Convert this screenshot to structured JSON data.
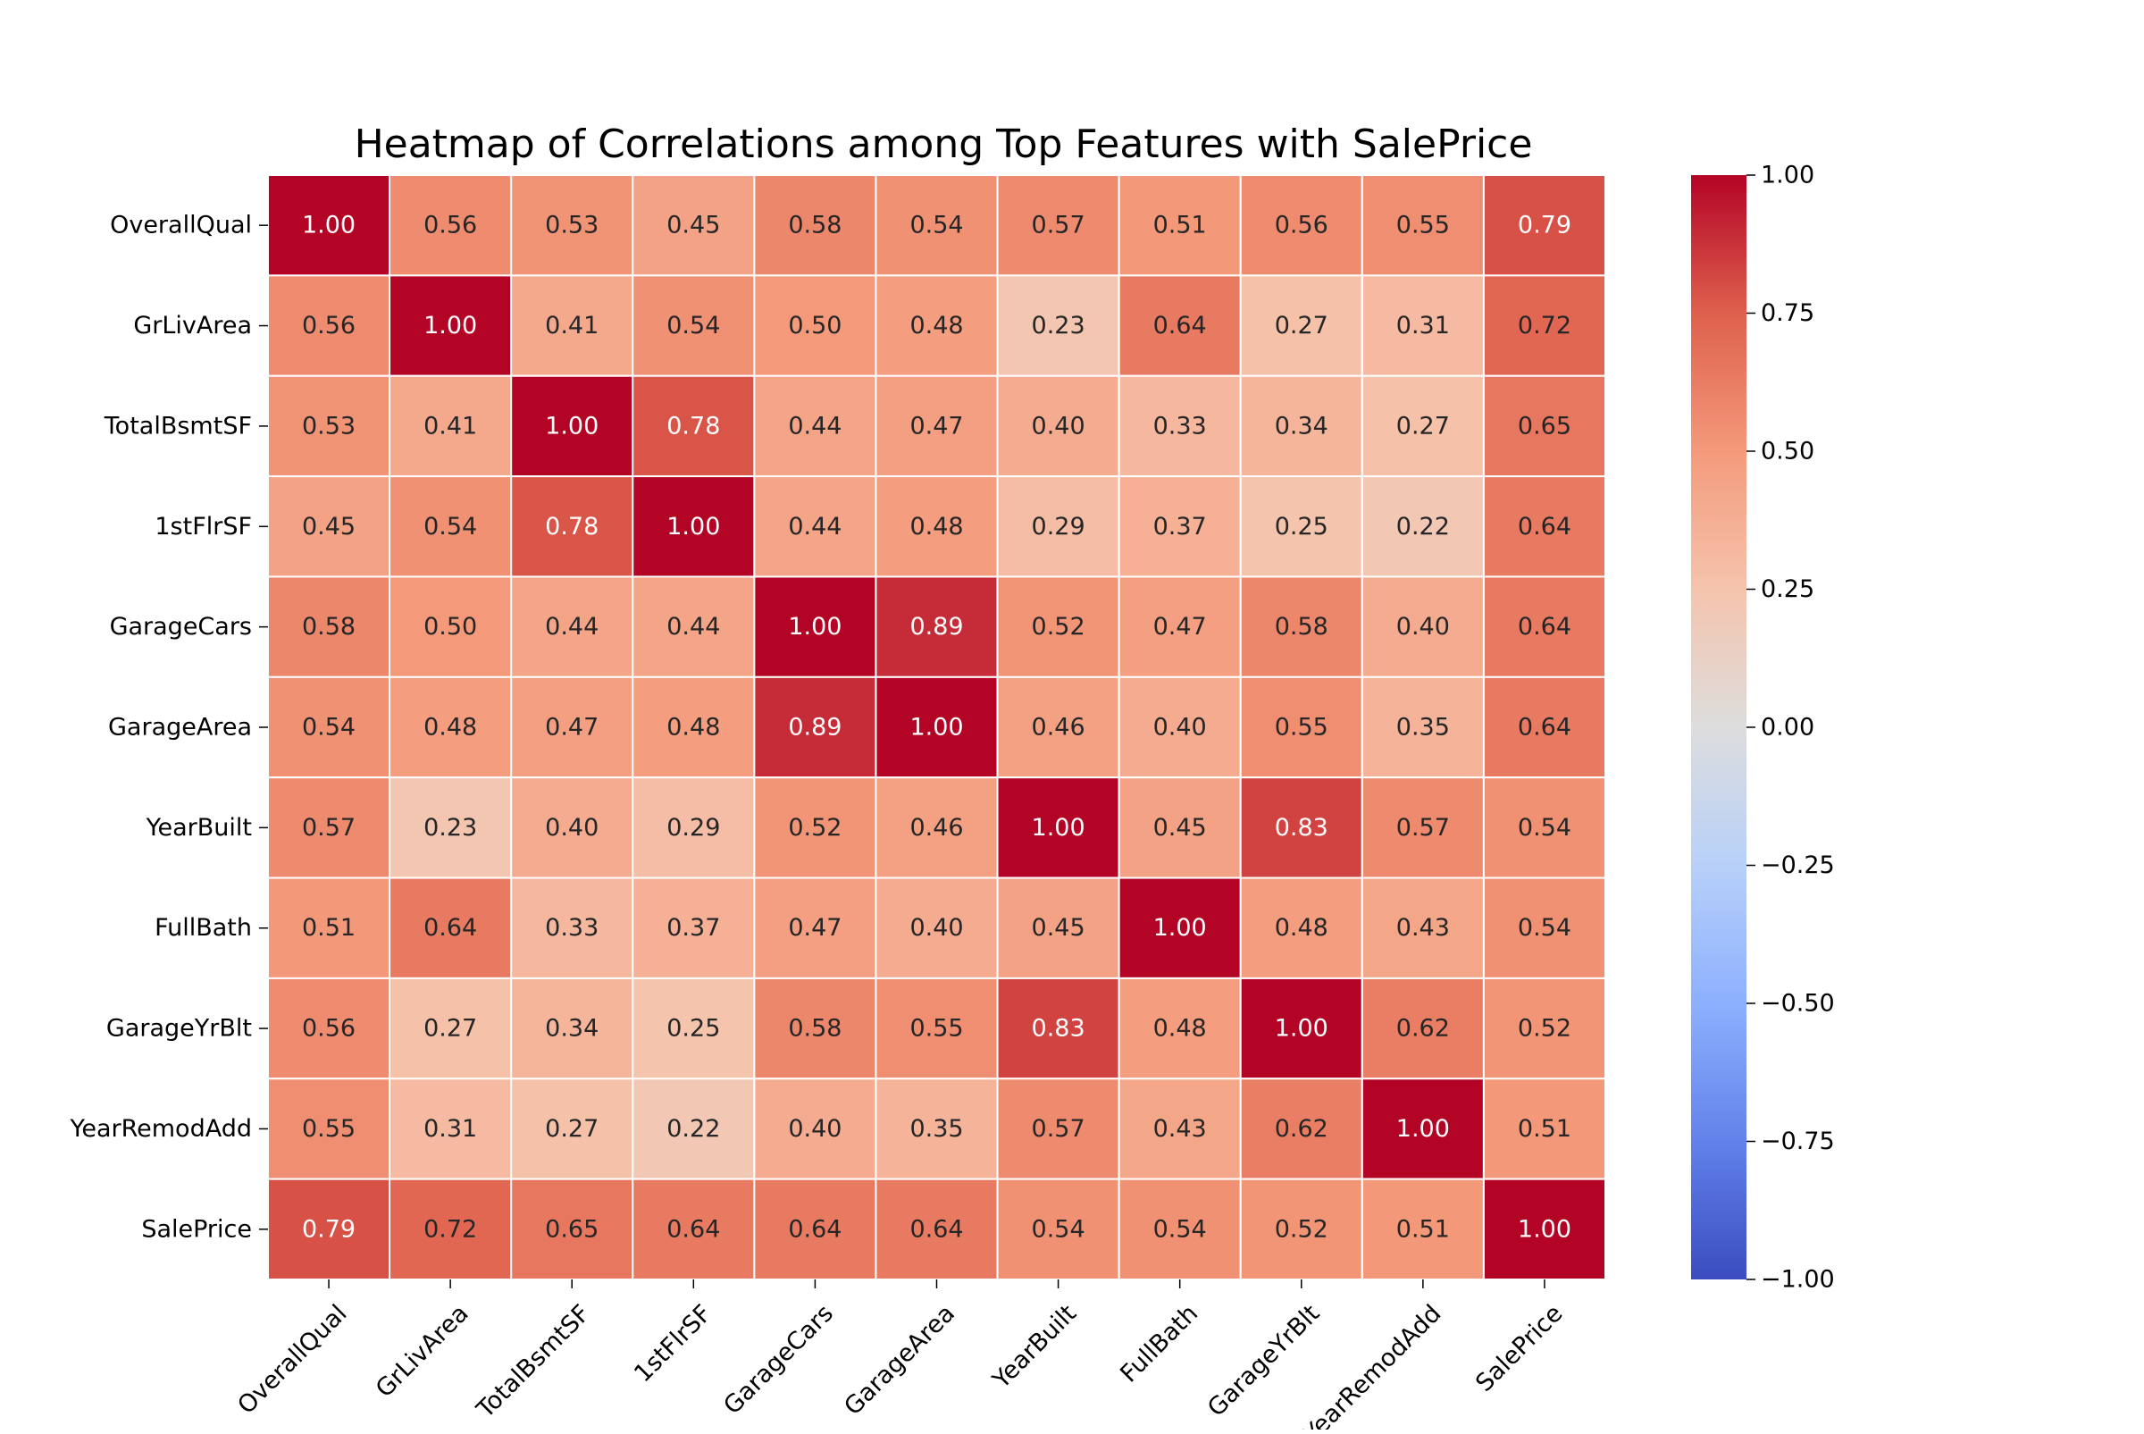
{
  "chart_data": {
    "type": "heatmap",
    "title": "Heatmap of Correlations among Top Features with SalePrice",
    "xlabel": "",
    "ylabel": "",
    "categories": [
      "OverallQual",
      "GrLivArea",
      "TotalBsmtSF",
      "1stFlrSF",
      "GarageCars",
      "GarageArea",
      "YearBuilt",
      "FullBath",
      "GarageYrBlt",
      "YearRemodAdd",
      "SalePrice"
    ],
    "values": [
      [
        1.0,
        0.56,
        0.53,
        0.45,
        0.58,
        0.54,
        0.57,
        0.51,
        0.56,
        0.55,
        0.79
      ],
      [
        0.56,
        1.0,
        0.41,
        0.54,
        0.5,
        0.48,
        0.23,
        0.64,
        0.27,
        0.31,
        0.72
      ],
      [
        0.53,
        0.41,
        1.0,
        0.78,
        0.44,
        0.47,
        0.4,
        0.33,
        0.34,
        0.27,
        0.65
      ],
      [
        0.45,
        0.54,
        0.78,
        1.0,
        0.44,
        0.48,
        0.29,
        0.37,
        0.25,
        0.22,
        0.64
      ],
      [
        0.58,
        0.5,
        0.44,
        0.44,
        1.0,
        0.89,
        0.52,
        0.47,
        0.58,
        0.4,
        0.64
      ],
      [
        0.54,
        0.48,
        0.47,
        0.48,
        0.89,
        1.0,
        0.46,
        0.4,
        0.55,
        0.35,
        0.64
      ],
      [
        0.57,
        0.23,
        0.4,
        0.29,
        0.52,
        0.46,
        1.0,
        0.45,
        0.83,
        0.57,
        0.54
      ],
      [
        0.51,
        0.64,
        0.33,
        0.37,
        0.47,
        0.4,
        0.45,
        1.0,
        0.48,
        0.43,
        0.54
      ],
      [
        0.56,
        0.27,
        0.34,
        0.25,
        0.58,
        0.55,
        0.83,
        0.48,
        1.0,
        0.62,
        0.52
      ],
      [
        0.55,
        0.31,
        0.27,
        0.22,
        0.4,
        0.35,
        0.57,
        0.43,
        0.62,
        1.0,
        0.51
      ],
      [
        0.79,
        0.72,
        0.65,
        0.64,
        0.64,
        0.64,
        0.54,
        0.54,
        0.52,
        0.51,
        1.0
      ]
    ],
    "colormap": "coolwarm",
    "vmin": -1.0,
    "vmax": 1.0,
    "colorbar_ticks": [
      "1.00",
      "0.75",
      "0.50",
      "0.25",
      "0.00",
      "−0.25",
      "−0.50",
      "−0.75",
      "−1.00"
    ],
    "colorbar_tick_values": [
      1.0,
      0.75,
      0.5,
      0.25,
      0.0,
      -0.25,
      -0.5,
      -0.75,
      -1.0
    ],
    "grid": false,
    "legend": "right"
  }
}
